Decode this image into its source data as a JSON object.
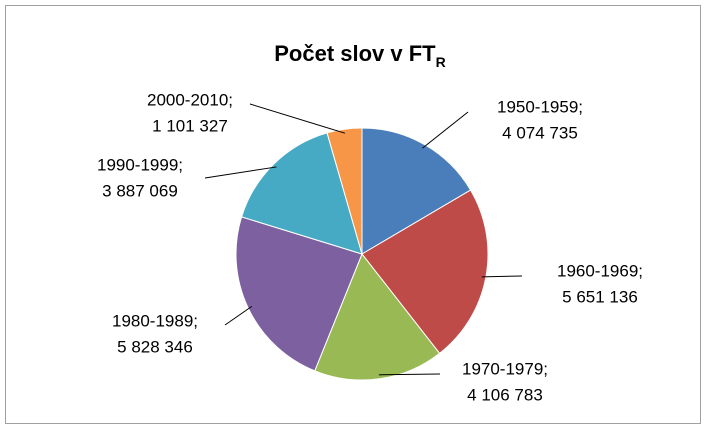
{
  "chart_data": {
    "type": "pie",
    "title": "Počet slov v FT",
    "title_subscript": "R",
    "categories": [
      "1950-1959;",
      "1960-1969;",
      "1970-1979;",
      "1980-1989;",
      "1990-1999;",
      "2000-2010;"
    ],
    "values": [
      4074735,
      5651136,
      4106783,
      5828346,
      3887069,
      1101327
    ],
    "value_labels": [
      "4 074 735",
      "5 651 136",
      "4 106 783",
      "5 828 346",
      "3 887 069",
      "1 101 327"
    ],
    "colors": [
      "#4a7ebb",
      "#be4b48",
      "#98b954",
      "#7d60a0",
      "#46aac5",
      "#f79646"
    ]
  }
}
